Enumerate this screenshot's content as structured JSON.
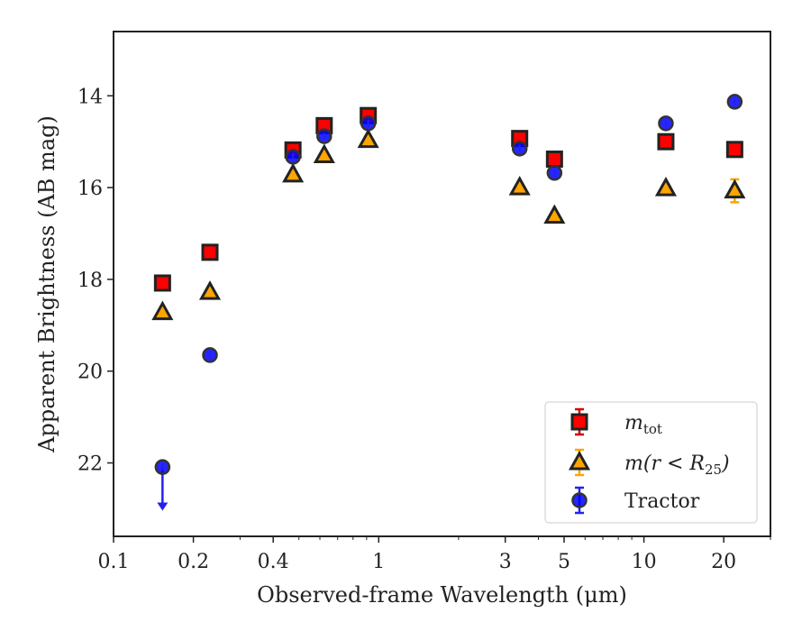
{
  "chart_data": {
    "type": "scatter",
    "x_scale": "log",
    "y_inverted": true,
    "xlim": [
      0.1,
      30
    ],
    "ylim": [
      23.6,
      12.6
    ],
    "xlabel": "Observed-frame Wavelength (μm)",
    "ylabel": "Apparent Brightness (AB mag)",
    "x_ticks": [
      {
        "value": 0.1,
        "label": "0.1"
      },
      {
        "value": 0.2,
        "label": "0.2"
      },
      {
        "value": 0.4,
        "label": "0.4"
      },
      {
        "value": 1,
        "label": "1"
      },
      {
        "value": 3,
        "label": "3"
      },
      {
        "value": 5,
        "label": "5"
      },
      {
        "value": 10,
        "label": "10"
      },
      {
        "value": 20,
        "label": "20"
      }
    ],
    "y_ticks": [
      {
        "value": 14,
        "label": "14"
      },
      {
        "value": 16,
        "label": "16"
      },
      {
        "value": 18,
        "label": "18"
      },
      {
        "value": 20,
        "label": "20"
      },
      {
        "value": 22,
        "label": "22"
      }
    ],
    "grid": false,
    "legend_position": "bottom-right",
    "series": [
      {
        "name_main": "m",
        "name_sub": "tot",
        "marker": "square",
        "color": "#ff0000",
        "edge_color": "#222222",
        "error_color": "#d40000",
        "points": [
          {
            "x": 0.153,
            "y": 18.08
          },
          {
            "x": 0.231,
            "y": 17.41
          },
          {
            "x": 0.475,
            "y": 15.18
          },
          {
            "x": 0.623,
            "y": 14.65
          },
          {
            "x": 0.913,
            "y": 14.43
          },
          {
            "x": 3.4,
            "y": 14.93
          },
          {
            "x": 4.6,
            "y": 15.38
          },
          {
            "x": 12.1,
            "y": 15.0
          },
          {
            "x": 22.0,
            "y": 15.17
          }
        ]
      },
      {
        "name_main": "m(r < R",
        "name_sub": "25",
        "name_end": ")",
        "marker": "triangle",
        "color": "#ffa500",
        "edge_color": "#222222",
        "error_color": "#ffa500",
        "points": [
          {
            "x": 0.153,
            "y": 18.72
          },
          {
            "x": 0.231,
            "y": 18.28
          },
          {
            "x": 0.475,
            "y": 15.72
          },
          {
            "x": 0.623,
            "y": 15.3
          },
          {
            "x": 0.913,
            "y": 14.97
          },
          {
            "x": 3.4,
            "y": 16.0
          },
          {
            "x": 4.6,
            "y": 16.62
          },
          {
            "x": 12.1,
            "y": 16.02
          },
          {
            "x": 22.0,
            "y": 16.07,
            "yerr": 0.25
          }
        ]
      },
      {
        "name_main": "Tractor",
        "marker": "circle",
        "color": "#0000ff",
        "edge_color": "#333333",
        "error_color": "#2222ee",
        "points": [
          {
            "x": 0.153,
            "y": 22.09,
            "upper_limit": true,
            "limit_to": 23.0
          },
          {
            "x": 0.231,
            "y": 19.65
          },
          {
            "x": 0.475,
            "y": 15.33
          },
          {
            "x": 0.623,
            "y": 14.88
          },
          {
            "x": 0.913,
            "y": 14.6
          },
          {
            "x": 3.4,
            "y": 15.15
          },
          {
            "x": 4.6,
            "y": 15.68
          },
          {
            "x": 12.1,
            "y": 14.6
          },
          {
            "x": 22.0,
            "y": 14.13
          }
        ]
      }
    ]
  }
}
